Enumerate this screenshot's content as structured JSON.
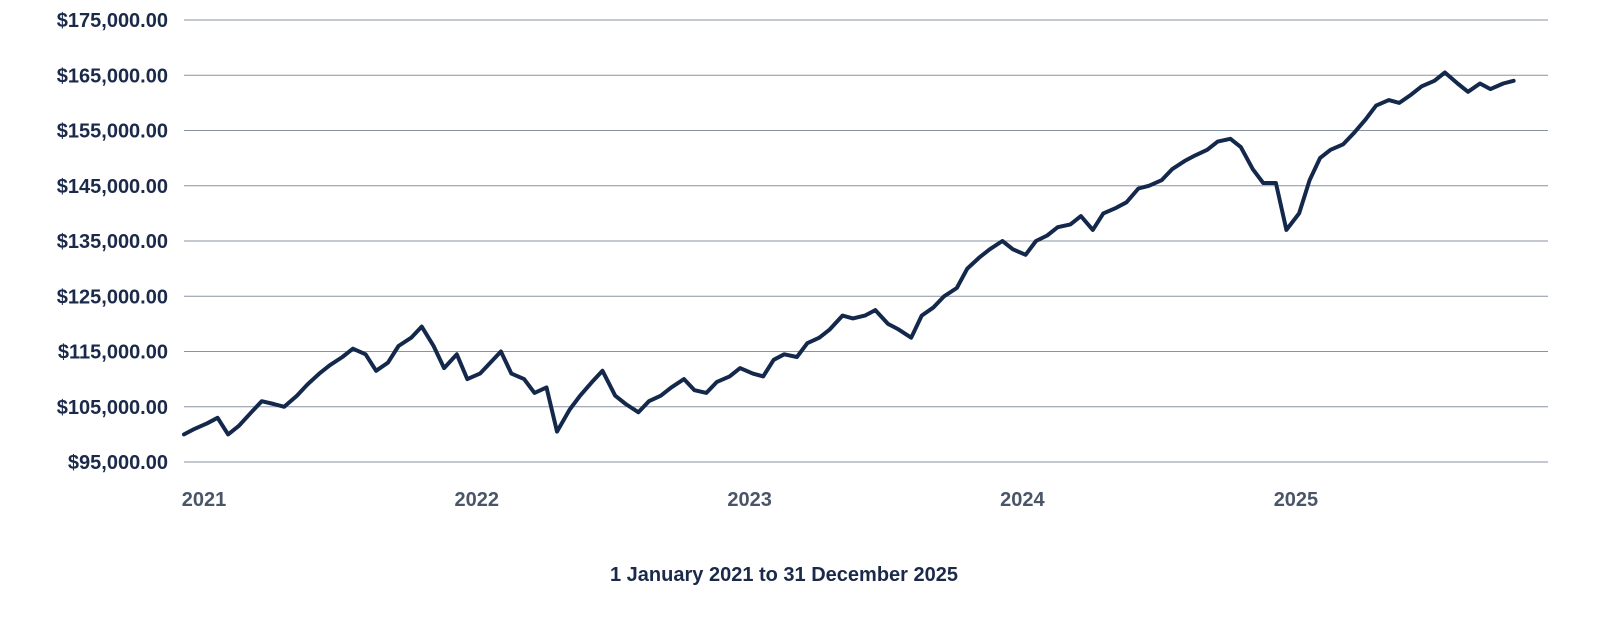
{
  "chart_data": {
    "type": "line",
    "title": "",
    "xlabel": "1 January 2021 to 31 December 2025",
    "ylabel": "",
    "ylim": [
      95000,
      175000
    ],
    "xlim": [
      "2021-01-01",
      "2025-12-31"
    ],
    "grid": "horizontal",
    "colors": {
      "line": "#13284a",
      "text": "#1b2a4a",
      "xtick": "#4a5568",
      "grid": "#8a93a3"
    },
    "y_ticks": [
      {
        "value": 175000,
        "label": "$175,000.00"
      },
      {
        "value": 165000,
        "label": "$165,000.00"
      },
      {
        "value": 155000,
        "label": "$155,000.00"
      },
      {
        "value": 145000,
        "label": "$145,000.00"
      },
      {
        "value": 135000,
        "label": "$135,000.00"
      },
      {
        "value": 125000,
        "label": "$125,000.00"
      },
      {
        "value": 115000,
        "label": "$115,000.00"
      },
      {
        "value": 105000,
        "label": "$105,000.00"
      },
      {
        "value": 95000,
        "label": "$95,000.00"
      }
    ],
    "x_ticks": [
      {
        "date": "2021-01-01",
        "label": "2021"
      },
      {
        "date": "2022-01-01",
        "label": "2022"
      },
      {
        "date": "2023-01-01",
        "label": "2023"
      },
      {
        "date": "2024-01-01",
        "label": "2024"
      },
      {
        "date": "2025-01-01",
        "label": "2025"
      }
    ],
    "series": [
      {
        "points": [
          [
            "2021-01-01",
            100000
          ],
          [
            "2021-01-15",
            101000
          ],
          [
            "2021-02-01",
            102000
          ],
          [
            "2021-02-15",
            103000
          ],
          [
            "2021-03-01",
            100000
          ],
          [
            "2021-03-15",
            101500
          ],
          [
            "2021-04-01",
            104000
          ],
          [
            "2021-04-15",
            106000
          ],
          [
            "2021-05-01",
            105500
          ],
          [
            "2021-05-15",
            105000
          ],
          [
            "2021-06-01",
            107000
          ],
          [
            "2021-06-15",
            109000
          ],
          [
            "2021-07-01",
            111000
          ],
          [
            "2021-07-15",
            112500
          ],
          [
            "2021-08-01",
            114000
          ],
          [
            "2021-08-15",
            115500
          ],
          [
            "2021-09-01",
            114500
          ],
          [
            "2021-09-15",
            111500
          ],
          [
            "2021-10-01",
            113000
          ],
          [
            "2021-10-15",
            116000
          ],
          [
            "2021-11-01",
            117500
          ],
          [
            "2021-11-15",
            119500
          ],
          [
            "2021-12-01",
            116000
          ],
          [
            "2021-12-15",
            112000
          ],
          [
            "2022-01-01",
            114500
          ],
          [
            "2022-01-15",
            110000
          ],
          [
            "2022-02-01",
            111000
          ],
          [
            "2022-02-15",
            113000
          ],
          [
            "2022-03-01",
            115000
          ],
          [
            "2022-03-15",
            111000
          ],
          [
            "2022-04-01",
            110000
          ],
          [
            "2022-04-15",
            107500
          ],
          [
            "2022-05-01",
            108500
          ],
          [
            "2022-05-15",
            100500
          ],
          [
            "2022-06-01",
            104500
          ],
          [
            "2022-06-15",
            107000
          ],
          [
            "2022-07-01",
            109500
          ],
          [
            "2022-07-15",
            111500
          ],
          [
            "2022-08-01",
            107000
          ],
          [
            "2022-08-15",
            105500
          ],
          [
            "2022-09-01",
            104000
          ],
          [
            "2022-09-15",
            106000
          ],
          [
            "2022-10-01",
            107000
          ],
          [
            "2022-10-15",
            108500
          ],
          [
            "2022-11-01",
            110000
          ],
          [
            "2022-11-15",
            108000
          ],
          [
            "2022-12-01",
            107500
          ],
          [
            "2022-12-15",
            109500
          ],
          [
            "2023-01-01",
            110500
          ],
          [
            "2023-01-15",
            112000
          ],
          [
            "2023-02-01",
            111000
          ],
          [
            "2023-02-15",
            110500
          ],
          [
            "2023-03-01",
            113500
          ],
          [
            "2023-03-15",
            114500
          ],
          [
            "2023-04-01",
            114000
          ],
          [
            "2023-04-15",
            116500
          ],
          [
            "2023-05-01",
            117500
          ],
          [
            "2023-05-15",
            119000
          ],
          [
            "2023-06-01",
            121500
          ],
          [
            "2023-06-15",
            121000
          ],
          [
            "2023-07-01",
            121500
          ],
          [
            "2023-07-15",
            122500
          ],
          [
            "2023-08-01",
            120000
          ],
          [
            "2023-08-15",
            119000
          ],
          [
            "2023-09-01",
            117500
          ],
          [
            "2023-09-15",
            121500
          ],
          [
            "2023-10-01",
            123000
          ],
          [
            "2023-10-15",
            125000
          ],
          [
            "2023-11-01",
            126500
          ],
          [
            "2023-11-15",
            130000
          ],
          [
            "2023-12-01",
            132000
          ],
          [
            "2023-12-15",
            133500
          ],
          [
            "2024-01-01",
            135000
          ],
          [
            "2024-01-15",
            133500
          ],
          [
            "2024-02-01",
            132500
          ],
          [
            "2024-02-15",
            135000
          ],
          [
            "2024-03-01",
            136000
          ],
          [
            "2024-03-15",
            137500
          ],
          [
            "2024-04-01",
            138000
          ],
          [
            "2024-04-15",
            139500
          ],
          [
            "2024-05-01",
            137000
          ],
          [
            "2024-05-15",
            140000
          ],
          [
            "2024-06-01",
            141000
          ],
          [
            "2024-06-15",
            142000
          ],
          [
            "2024-07-01",
            144500
          ],
          [
            "2024-07-15",
            145000
          ],
          [
            "2024-08-01",
            146000
          ],
          [
            "2024-08-15",
            148000
          ],
          [
            "2024-09-01",
            149500
          ],
          [
            "2024-09-15",
            150500
          ],
          [
            "2024-10-01",
            151500
          ],
          [
            "2024-10-15",
            153000
          ],
          [
            "2024-11-01",
            153500
          ],
          [
            "2024-11-15",
            152000
          ],
          [
            "2024-12-01",
            148000
          ],
          [
            "2024-12-15",
            145500
          ],
          [
            "2025-01-01",
            145500
          ],
          [
            "2025-01-15",
            137000
          ],
          [
            "2025-02-01",
            140000
          ],
          [
            "2025-02-15",
            146000
          ],
          [
            "2025-03-01",
            150000
          ],
          [
            "2025-03-15",
            151500
          ],
          [
            "2025-04-01",
            152500
          ],
          [
            "2025-04-15",
            154500
          ],
          [
            "2025-05-01",
            157000
          ],
          [
            "2025-05-15",
            159500
          ],
          [
            "2025-06-01",
            160500
          ],
          [
            "2025-06-15",
            160000
          ],
          [
            "2025-07-01",
            161500
          ],
          [
            "2025-07-15",
            163000
          ],
          [
            "2025-08-01",
            164000
          ],
          [
            "2025-08-15",
            165500
          ],
          [
            "2025-09-01",
            163500
          ],
          [
            "2025-09-15",
            162000
          ],
          [
            "2025-10-01",
            163500
          ],
          [
            "2025-10-15",
            162500
          ],
          [
            "2025-11-01",
            163500
          ],
          [
            "2025-11-15",
            164000
          ]
        ]
      }
    ]
  }
}
